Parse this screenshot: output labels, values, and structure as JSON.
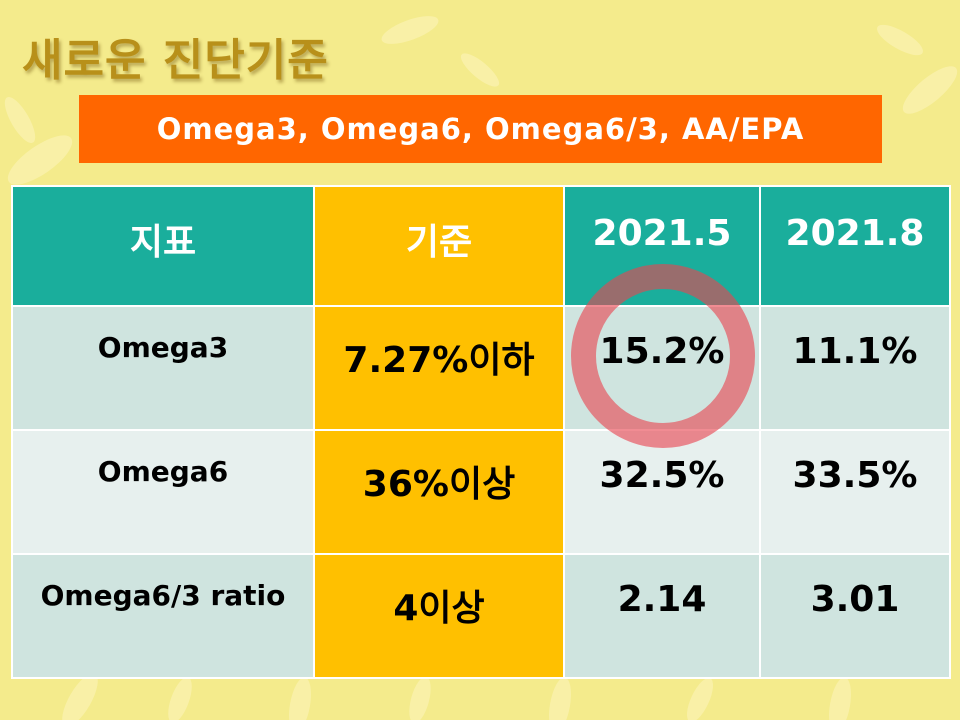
{
  "slide": {
    "title": "새로운 진단기준",
    "subtitle": "Omega3, Omega6, Omega6/3, AA/EPA"
  },
  "table": {
    "headers": [
      "지표",
      "기준",
      "2021.5",
      "2021.8"
    ],
    "rows": [
      {
        "indicator": "Omega3",
        "standard": "7.27%이하",
        "may": "15.2%",
        "aug": "11.1%"
      },
      {
        "indicator": "Omega6",
        "standard": "36%이상",
        "may": "32.5%",
        "aug": "33.5%"
      },
      {
        "indicator": "Omega6/3 ratio",
        "standard": "4이상",
        "may": "2.14",
        "aug": "3.01"
      }
    ]
  },
  "colors": {
    "background": "#f4eb8c",
    "title": "#b8901a",
    "banner": "#ff6600",
    "header": "#1aae9c",
    "standard_column": "#ffc000",
    "highlight_circle": "#e84650"
  },
  "annotations": {
    "highlight": "circle-around-omega3-2021.5"
  }
}
